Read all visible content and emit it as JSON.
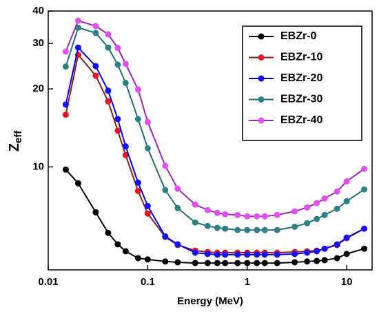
{
  "chart_data": {
    "type": "line",
    "x_label": "Energy (MeV)",
    "y_label": "Z",
    "y_label_sub": "eff",
    "x": [
      0.015,
      0.02,
      0.03,
      0.04,
      0.05,
      0.06,
      0.08,
      0.1,
      0.15,
      0.2,
      0.3,
      0.4,
      0.5,
      0.6,
      0.8,
      1,
      1.25,
      1.5,
      2,
      3,
      4,
      5,
      6,
      8,
      10,
      15
    ],
    "series": [
      {
        "name": "EBZr-0",
        "color": "#000000",
        "line_color": "#000000",
        "values": [
          9.76,
          8.64,
          6.68,
          5.56,
          5.02,
          4.72,
          4.44,
          4.39,
          4.31,
          4.28,
          4.25,
          4.25,
          4.25,
          4.25,
          4.25,
          4.25,
          4.25,
          4.25,
          4.25,
          4.28,
          4.31,
          4.33,
          4.36,
          4.44,
          4.61,
          4.83
        ]
      },
      {
        "name": "EBZr-10",
        "color": "#e8161e",
        "line_color": "#8b1a1a",
        "values": [
          15.9,
          27.1,
          22.5,
          17.9,
          13.8,
          11.1,
          8.07,
          6.6,
          5.36,
          4.99,
          4.75,
          4.69,
          4.66,
          4.66,
          4.66,
          4.66,
          4.66,
          4.66,
          4.66,
          4.69,
          4.72,
          4.75,
          4.83,
          4.99,
          5.3,
          5.77
        ]
      },
      {
        "name": "EBZr-20",
        "color": "#1010ff",
        "line_color": "#0000e0",
        "values": [
          17.4,
          28.9,
          24.5,
          19.7,
          15.3,
          12.0,
          8.69,
          7.06,
          5.39,
          5.02,
          4.66,
          4.61,
          4.58,
          4.58,
          4.58,
          4.58,
          4.58,
          4.58,
          4.58,
          4.61,
          4.66,
          4.72,
          4.83,
          5.02,
          5.33,
          5.77
        ]
      },
      {
        "name": "EBZr-30",
        "color": "#2a8288",
        "line_color": "#236e73",
        "values": [
          24.4,
          34.5,
          32.9,
          28.9,
          24.8,
          21.1,
          15.3,
          11.8,
          8.13,
          6.93,
          6.1,
          5.91,
          5.81,
          5.77,
          5.7,
          5.7,
          5.7,
          5.7,
          5.7,
          5.87,
          6.06,
          6.29,
          6.52,
          6.89,
          7.37,
          8.18
        ]
      },
      {
        "name": "EBZr-40",
        "color": "#e24ef0",
        "line_color": "#a020c0",
        "values": [
          27.9,
          36.7,
          35.0,
          32.5,
          28.8,
          25.0,
          19.9,
          14.9,
          10.1,
          8.23,
          7.15,
          6.81,
          6.64,
          6.56,
          6.52,
          6.44,
          6.44,
          6.44,
          6.52,
          6.73,
          6.97,
          7.24,
          7.55,
          8.03,
          8.79,
          9.82
        ]
      }
    ],
    "xscale": "log",
    "yscale": "log",
    "xlim": [
      0.01,
      18
    ],
    "ylim": [
      4,
      40
    ],
    "xticks": [
      0.01,
      0.1,
      1,
      10
    ],
    "yticks": [
      10,
      20,
      30,
      40
    ],
    "legend": "upper right",
    "grid": false
  }
}
